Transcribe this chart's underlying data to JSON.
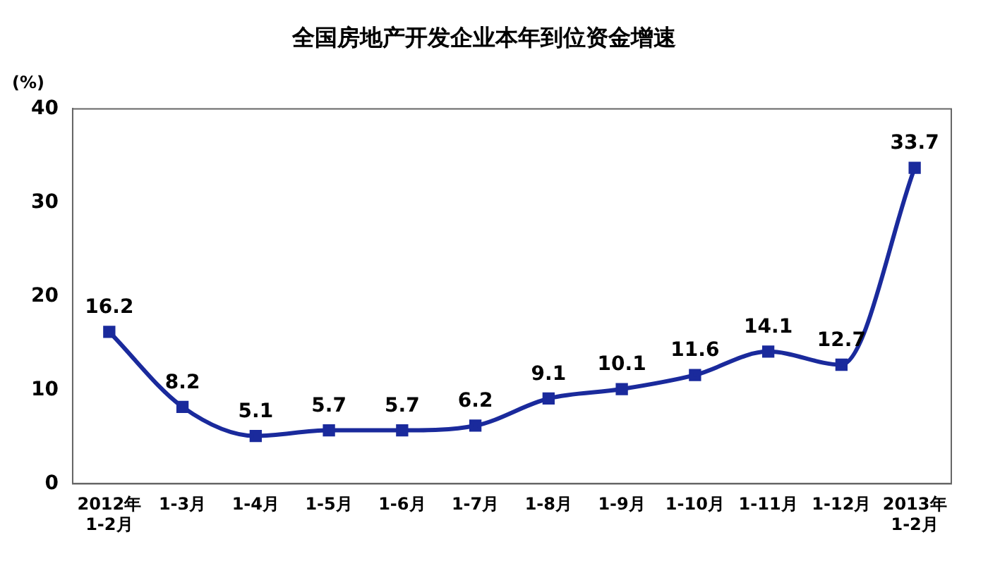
{
  "chart_data": {
    "type": "line",
    "title": "全国房地产开发企业本年到位资金增速",
    "ylabel": "(%)",
    "categories": [
      "2012年\n1-2月",
      "1-3月",
      "1-4月",
      "1-5月",
      "1-6月",
      "1-7月",
      "1-8月",
      "1-9月",
      "1-10月",
      "1-11月",
      "1-12月",
      "2013年\n1-2月"
    ],
    "series": [
      {
        "color": "#1a2a9c",
        "values": [
          16.2,
          8.2,
          5.1,
          5.7,
          5.7,
          6.2,
          9.1,
          10.1,
          11.6,
          14.1,
          12.7,
          33.7
        ]
      }
    ],
    "ylim": [
      0,
      40
    ],
    "yticks": [
      0,
      10,
      20,
      30,
      40
    ],
    "grid": false,
    "legend": false,
    "marker": "square",
    "line_style": "solid",
    "data_labels": true
  }
}
